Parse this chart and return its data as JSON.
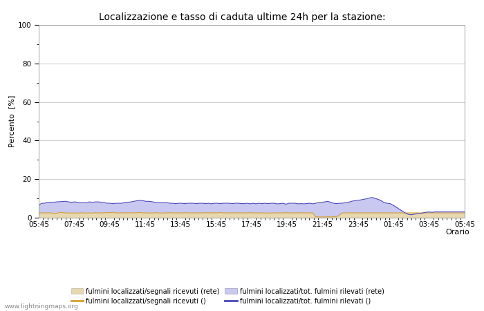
{
  "title": "Localizzazione e tasso di caduta ultime 24h per la stazione:",
  "xlabel": "Orario",
  "ylabel": "Percento  [%]",
  "ylim": [
    0,
    100
  ],
  "yticks": [
    0,
    20,
    40,
    60,
    80,
    100
  ],
  "yticks_minor": [
    10,
    30,
    50,
    70,
    90
  ],
  "x_labels": [
    "05:45",
    "07:45",
    "09:45",
    "11:45",
    "13:45",
    "15:45",
    "17:45",
    "19:45",
    "21:45",
    "23:45",
    "01:45",
    "03:45",
    "05:45"
  ],
  "fill_color_area1": "#e8d8b0",
  "fill_color_area2": "#c8c8f0",
  "line_color1": "#d4a030",
  "line_color2": "#4848b8",
  "background_color": "#ffffff",
  "grid_color": "#cccccc",
  "title_fontsize": 10,
  "axis_fontsize": 8,
  "tick_fontsize": 7.5,
  "watermark": "www.lightningmaps.org",
  "legend_labels": [
    "fulmini localizzati/segnali ricevuti (rete)",
    "fulmini localizzati/segnali ricevuti ()",
    "fulmini localizzati/tot. fulmini rilevati (rete)",
    "fulmini localizzati/tot. fulmini rilevati ()"
  ],
  "area1_values": [
    2.5,
    2.5,
    2.5,
    2.5,
    2.5,
    2.2,
    2.3,
    2.8,
    2.6,
    2.5,
    2.5,
    2.4,
    2.5,
    2.4,
    2.5,
    2.5,
    2.4,
    2.5,
    2.4,
    2.6,
    2.5,
    2.5,
    2.5,
    2.7,
    2.6,
    2.8,
    2.5,
    2.5,
    2.6,
    2.5,
    2.6,
    2.5,
    2.5,
    2.6,
    2.7,
    2.5,
    2.5,
    2.5,
    2.4,
    2.6,
    2.5,
    2.4,
    2.5,
    2.5,
    2.6,
    2.5,
    2.5,
    2.5,
    2.5,
    2.6,
    2.5,
    2.5,
    2.5,
    2.5,
    2.5,
    2.5,
    2.6,
    2.5,
    2.6,
    2.5,
    2.5,
    2.7,
    2.5,
    2.5,
    2.5,
    2.5,
    2.6,
    2.5,
    2.5,
    2.5,
    2.5,
    2.6,
    2.5,
    2.5,
    2.5,
    2.5,
    2.4,
    2.5,
    2.4,
    2.5,
    2.5,
    2.5,
    2.5,
    2.6,
    2.5,
    2.5,
    2.5,
    2.5,
    2.6,
    2.5,
    2.5,
    2.5,
    2.5,
    0.5,
    0.4,
    0.4,
    0.4,
    0.5,
    0.4,
    0.5,
    0.5,
    1.5,
    2.5,
    2.5,
    2.5,
    2.5,
    2.5,
    2.5,
    2.5,
    2.5,
    2.5,
    2.5,
    2.5,
    2.5,
    2.5,
    2.5,
    2.5,
    2.5,
    2.5,
    2.5,
    2.5,
    2.5,
    2.5,
    2.5,
    2.5,
    2.5,
    2.5,
    2.5,
    2.5,
    2.5,
    2.5,
    2.5,
    2.5,
    2.5,
    2.5,
    2.5,
    2.5,
    2.5,
    2.5,
    2.5,
    2.5,
    2.5,
    2.5,
    2.5
  ],
  "area2_values": [
    6.5,
    7.5,
    7.5,
    8.0,
    8.0,
    8.0,
    8.2,
    8.3,
    8.4,
    8.5,
    8.2,
    8.0,
    8.2,
    8.0,
    7.8,
    7.8,
    7.8,
    8.2,
    8.0,
    8.2,
    8.2,
    8.0,
    7.8,
    7.5,
    7.5,
    7.3,
    7.5,
    7.5,
    7.5,
    8.0,
    8.0,
    8.2,
    8.5,
    8.8,
    9.0,
    8.8,
    8.5,
    8.5,
    8.3,
    8.0,
    7.8,
    7.8,
    7.8,
    7.8,
    7.5,
    7.5,
    7.3,
    7.5,
    7.5,
    7.3,
    7.5,
    7.5,
    7.5,
    7.3,
    7.5,
    7.5,
    7.3,
    7.5,
    7.2,
    7.5,
    7.5,
    7.3,
    7.5,
    7.5,
    7.5,
    7.3,
    7.5,
    7.5,
    7.3,
    7.3,
    7.5,
    7.2,
    7.5,
    7.2,
    7.5,
    7.3,
    7.5,
    7.3,
    7.5,
    7.5,
    7.2,
    7.3,
    7.5,
    7.0,
    7.5,
    7.5,
    7.5,
    7.2,
    7.3,
    7.2,
    7.3,
    7.5,
    7.2,
    7.5,
    7.8,
    8.0,
    8.2,
    8.5,
    8.0,
    7.5,
    7.3,
    7.5,
    7.5,
    7.8,
    8.0,
    8.5,
    8.8,
    9.0,
    9.2,
    9.5,
    9.8,
    10.2,
    10.5,
    10.0,
    9.5,
    8.8,
    7.8,
    7.5,
    7.3,
    6.5,
    5.5,
    4.5,
    3.5,
    2.5,
    1.8,
    1.5,
    1.8,
    2.0,
    2.2,
    2.5,
    2.8,
    3.0,
    2.8,
    3.0,
    3.0,
    3.0,
    3.0,
    3.0,
    3.0,
    3.0,
    3.0,
    3.0,
    3.0,
    3.0
  ]
}
